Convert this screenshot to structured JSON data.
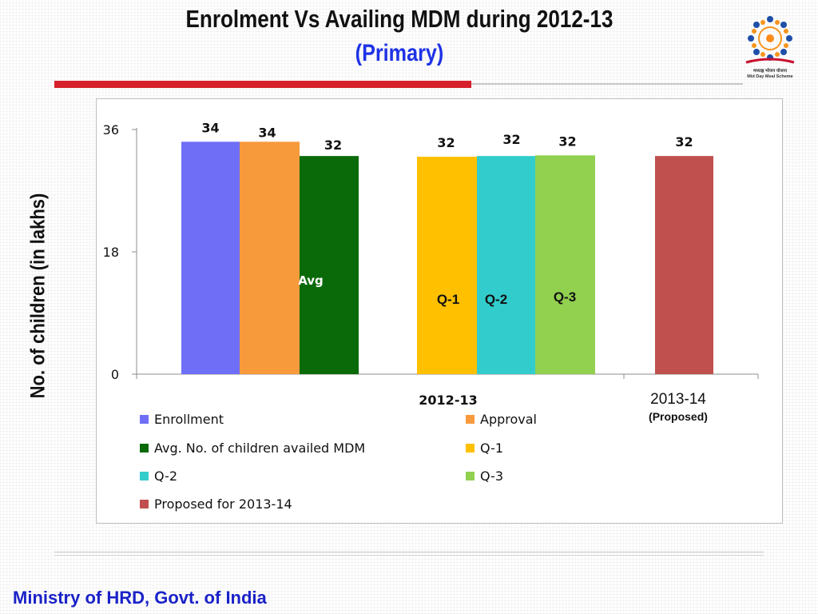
{
  "slide": {
    "title": "Enrolment Vs Availing MDM during  2012-13",
    "subtitle": "(Primary)",
    "footer": "Ministry of HRD, Govt. of India",
    "logo_caption_line1": "मध्याह्न भोजन योजना",
    "logo_caption_line2": "Mid Day Meal Scheme"
  },
  "colors": {
    "enrollment": "#6f6ef7",
    "approval": "#f79a3c",
    "avg": "#0a6a0a",
    "q1": "#ffc000",
    "q2": "#33cccc",
    "q3": "#92d050",
    "proposed": "#c0504d",
    "title_blue": "#1e32e6",
    "accent_red": "#d6202a"
  },
  "chart_data": {
    "type": "bar",
    "ylabel": "No. of children (in lakhs)",
    "ylim": [
      0,
      36
    ],
    "yticks": [
      "0",
      "18",
      "36"
    ],
    "groups": [
      {
        "label": "2012-13",
        "sublabel": ""
      },
      {
        "label": "2013-14",
        "sublabel": "(Proposed)"
      }
    ],
    "series": [
      {
        "name": "Enrollment",
        "group": 0,
        "value": 34.2,
        "data_label": "34",
        "bar_label": ""
      },
      {
        "name": "Approval",
        "group": 0,
        "value": 34.2,
        "data_label": "34",
        "bar_label": ""
      },
      {
        "name": "Avg. No. of children availed MDM",
        "group": 0,
        "value": 32.1,
        "data_label": "32",
        "bar_label": "Avg"
      },
      {
        "name": "Q-1",
        "group": 0,
        "value": 32.0,
        "data_label": "32",
        "bar_label": "Q-1"
      },
      {
        "name": "Q-2",
        "group": 0,
        "value": 32.1,
        "data_label": "32",
        "bar_label": "Q-2"
      },
      {
        "name": "Q-3",
        "group": 0,
        "value": 32.2,
        "data_label": "32",
        "bar_label": "Q-3"
      },
      {
        "name": "Proposed for 2013-14",
        "group": 1,
        "value": 32.1,
        "data_label": "32",
        "bar_label": ""
      }
    ],
    "legend_position": "bottom",
    "grid": false
  }
}
